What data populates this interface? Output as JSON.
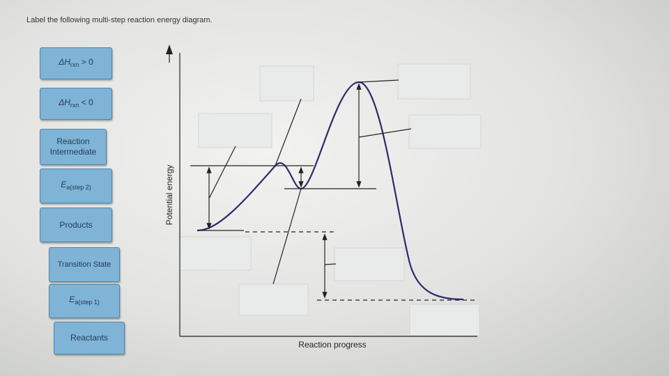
{
  "instruction": "Label the following multi-step reaction energy diagram.",
  "labels": [
    {
      "main": "ΔH",
      "sub": "rxn",
      "tail": " > 0"
    },
    {
      "main": "ΔH",
      "sub": "rxn",
      "tail": " < 0"
    },
    {
      "text": "Reaction Intermediate"
    },
    {
      "main": "E",
      "sub": "a(step 2)"
    },
    {
      "text": "Products"
    },
    {
      "text": "Transition State"
    },
    {
      "main": "E",
      "sub": "a(step 1)"
    },
    {
      "text": "Reactants"
    }
  ],
  "diagram": {
    "y_axis": "Potential energy",
    "x_axis": "Reaction progress"
  }
}
